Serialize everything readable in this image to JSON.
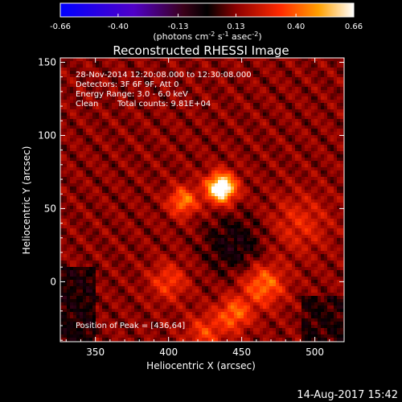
{
  "chart_data": {
    "type": "heatmap",
    "title": "Reconstructed RHESSI Image",
    "xlabel": "Heliocentric X (arcsec)",
    "ylabel": "Heliocentric Y (arcsec)",
    "x_ticks": [
      350,
      400,
      450,
      500
    ],
    "y_ticks": [
      0,
      50,
      100,
      150
    ],
    "xlim": [
      326,
      520
    ],
    "ylim": [
      -41,
      153
    ],
    "colorbar": {
      "ticks": [
        "-0.66",
        "-0.40",
        "-0.13",
        "0.13",
        "0.40",
        "0.66"
      ],
      "vmin": -0.66,
      "vmax": 0.66,
      "units_prefix": "(photons cm",
      "units_exp1": "-2",
      "units_mid": " s",
      "units_exp2": "-1",
      "units_mid2": " asec",
      "units_exp3": "-2",
      "units_suffix": ")"
    },
    "info_lines": [
      "28-Nov-2014 12:20:08.000 to 12:30:08.000",
      "Detectors: 3F 6F 9F, Att 0",
      "Energy Range: 3.0 - 6.0 keV"
    ],
    "clean_label": "Clean",
    "total_counts_label": "Total counts: 9.81E+04",
    "peak_label": "Position of Peak = [436,64]",
    "peak": {
      "x": 436,
      "y": 64,
      "value": 0.66
    },
    "sources": [
      {
        "x": 436,
        "y": 64,
        "amp": 0.66,
        "sigma": 7
      },
      {
        "x": 410,
        "y": 55,
        "amp": 0.32,
        "sigma": 7
      },
      {
        "x": 465,
        "y": -2,
        "amp": 0.3,
        "sigma": 10
      },
      {
        "x": 445,
        "y": -22,
        "amp": 0.28,
        "sigma": 8
      },
      {
        "x": 400,
        "y": 0,
        "amp": 0.2,
        "sigma": 9
      },
      {
        "x": 425,
        "y": -35,
        "amp": 0.2,
        "sigma": 9
      },
      {
        "x": 490,
        "y": 40,
        "amp": 0.15,
        "sigma": 14
      }
    ]
  },
  "timestamp": "14-Aug-2017 15:42"
}
